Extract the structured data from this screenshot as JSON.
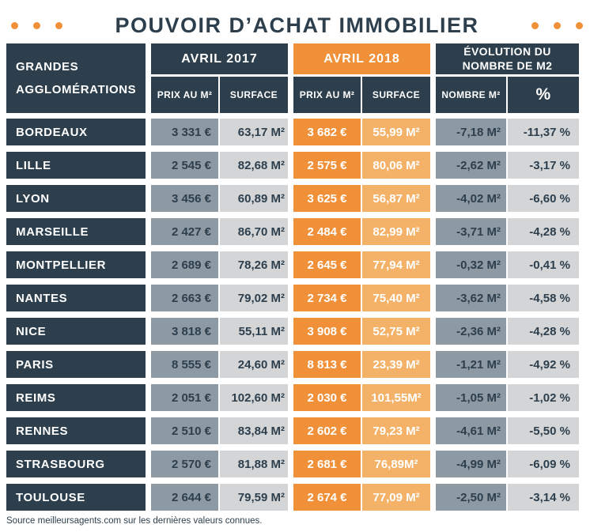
{
  "title": {
    "text": "POUVOIR D’ACHAT IMMOBILIER"
  },
  "colors": {
    "navy": "#2d3f4d",
    "orange": "#f0913a",
    "orange-light": "#f3b268",
    "gray-blue": "#8d99a3",
    "gray-light": "#d3d5d7"
  },
  "header": {
    "row_label_line1": "GRANDES",
    "row_label_line2": "AGGLOMÉRATIONS",
    "group_2017": "AVRIL 2017",
    "group_2018": "AVRIL 2018",
    "group_evolution_line1": "ÉVOLUTION DU",
    "group_evolution_line2": "NOMBRE DE M2",
    "sub_prix_2017": "PRIX AU M²",
    "sub_surface_2017": "SURFACE",
    "sub_prix_2018": "PRIX AU M²",
    "sub_surface_2018": "SURFACE",
    "sub_nombre": "NOMBRE M²",
    "sub_pct": "%"
  },
  "rows": [
    {
      "city": "BORDEAUX",
      "prix_2017": "3 331 €",
      "surface_2017": "63,17 M²",
      "prix_2018": "3 682 €",
      "surface_2018": "55,99 M²",
      "nombre_m2": "-7,18 M²",
      "pct": "-11,37 %"
    },
    {
      "city": "LILLE",
      "prix_2017": "2 545 €",
      "surface_2017": "82,68 M²",
      "prix_2018": "2 575 €",
      "surface_2018": "80,06 M²",
      "nombre_m2": "-2,62 M²",
      "pct": "-3,17 %"
    },
    {
      "city": "LYON",
      "prix_2017": "3 456 €",
      "surface_2017": "60,89 M²",
      "prix_2018": "3 625 €",
      "surface_2018": "56,87 M²",
      "nombre_m2": "-4,02 M²",
      "pct": "-6,60 %"
    },
    {
      "city": "MARSEILLE",
      "prix_2017": "2 427 €",
      "surface_2017": "86,70 M²",
      "prix_2018": "2 484 €",
      "surface_2018": "82,99 M²",
      "nombre_m2": "-3,71 M²",
      "pct": "-4,28 %"
    },
    {
      "city": "MONTPELLIER",
      "prix_2017": "2 689 €",
      "surface_2017": "78,26 M²",
      "prix_2018": "2 645 €",
      "surface_2018": "77,94 M²",
      "nombre_m2": "-0,32 M²",
      "pct": "-0,41 %"
    },
    {
      "city": "NANTES",
      "prix_2017": "2 663 €",
      "surface_2017": "79,02 M²",
      "prix_2018": "2 734 €",
      "surface_2018": "75,40 M²",
      "nombre_m2": "-3,62 M²",
      "pct": "-4,58 %"
    },
    {
      "city": "NICE",
      "prix_2017": "3 818 €",
      "surface_2017": "55,11 M²",
      "prix_2018": "3 908 €",
      "surface_2018": "52,75 M²",
      "nombre_m2": "-2,36 M²",
      "pct": "-4,28 %"
    },
    {
      "city": "PARIS",
      "prix_2017": "8 555 €",
      "surface_2017": "24,60 M²",
      "prix_2018": "8 813 €",
      "surface_2018": "23,39 M²",
      "nombre_m2": "-1,21 M²",
      "pct": "-4,92 %"
    },
    {
      "city": "REIMS",
      "prix_2017": "2 051 €",
      "surface_2017": "102,60 M²",
      "prix_2018": "2 030 €",
      "surface_2018": "101,55M²",
      "nombre_m2": "-1,05 M²",
      "pct": "-1,02 %"
    },
    {
      "city": "RENNES",
      "prix_2017": "2 510 €",
      "surface_2017": "83,84 M²",
      "prix_2018": "2 602 €",
      "surface_2018": "79,23 M²",
      "nombre_m2": "-4,61 M²",
      "pct": "-5,50 %"
    },
    {
      "city": "STRASBOURG",
      "prix_2017": "2 570 €",
      "surface_2017": "81,88 M²",
      "prix_2018": "2 681 €",
      "surface_2018": "76,89M²",
      "nombre_m2": "-4,99 M²",
      "pct": "-6,09 %"
    },
    {
      "city": "TOULOUSE",
      "prix_2017": "2 644 €",
      "surface_2017": "79,59 M²",
      "prix_2018": "2 674 €",
      "surface_2018": "77,09 M²",
      "nombre_m2": "-2,50 M²",
      "pct": "-3,14 %"
    }
  ],
  "footer": {
    "source": "Source meilleursagents.com sur les dernières valeurs connues."
  },
  "chart_data": {
    "type": "table",
    "title": "POUVOIR D’ACHAT IMMOBILIER",
    "categories": [
      "BORDEAUX",
      "LILLE",
      "LYON",
      "MARSEILLE",
      "MONTPELLIER",
      "NANTES",
      "NICE",
      "PARIS",
      "REIMS",
      "RENNES",
      "STRASBOURG",
      "TOULOUSE"
    ],
    "series": [
      {
        "name": "Prix au m² avril 2017 (€)",
        "values": [
          3331,
          2545,
          3456,
          2427,
          2689,
          2663,
          3818,
          8555,
          2051,
          2510,
          2570,
          2644
        ]
      },
      {
        "name": "Surface avril 2017 (m²)",
        "values": [
          63.17,
          82.68,
          60.89,
          86.7,
          78.26,
          79.02,
          55.11,
          24.6,
          102.6,
          83.84,
          81.88,
          79.59
        ]
      },
      {
        "name": "Prix au m² avril 2018 (€)",
        "values": [
          3682,
          2575,
          3625,
          2484,
          2645,
          2734,
          3908,
          8813,
          2030,
          2602,
          2681,
          2674
        ]
      },
      {
        "name": "Surface avril 2018 (m²)",
        "values": [
          55.99,
          80.06,
          56.87,
          82.99,
          77.94,
          75.4,
          52.75,
          23.39,
          101.55,
          79.23,
          76.89,
          77.09
        ]
      },
      {
        "name": "Évolution du nombre de m²",
        "values": [
          -7.18,
          -2.62,
          -4.02,
          -3.71,
          -0.32,
          -3.62,
          -2.36,
          -1.21,
          -1.05,
          -4.61,
          -4.99,
          -2.5
        ]
      },
      {
        "name": "Évolution %",
        "values": [
          -11.37,
          -3.17,
          -6.6,
          -4.28,
          -0.41,
          -4.58,
          -4.28,
          -4.92,
          -1.02,
          -5.5,
          -6.09,
          -3.14
        ]
      }
    ],
    "source_note": "Source meilleursagents.com sur les dernières valeurs connues."
  }
}
